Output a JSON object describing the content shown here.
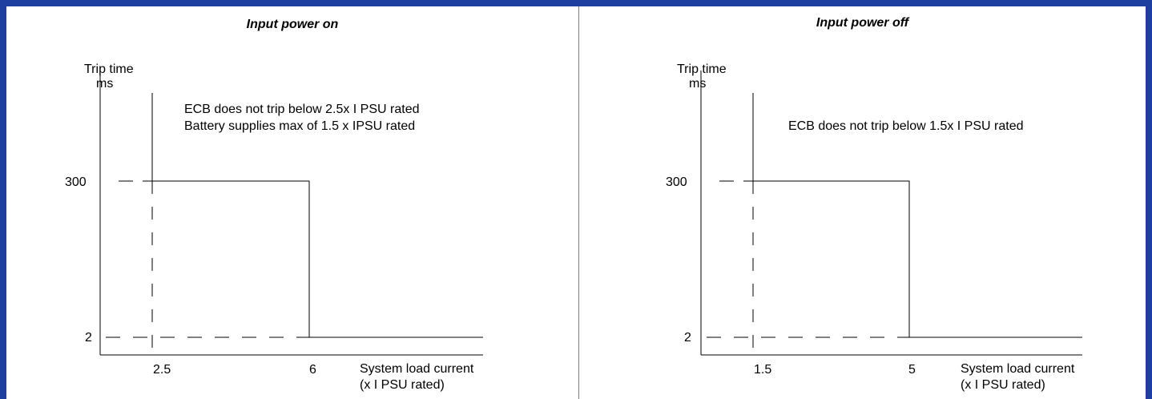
{
  "panels": [
    {
      "title": "Input power on",
      "y_axis_label_line1": "Trip time",
      "y_axis_label_line2": "ms",
      "note_line1": "ECB does not trip below 2.5x I PSU rated",
      "note_line2": "Battery supplies max of 1.5 x IPSU rated",
      "y_tick_high": "300",
      "y_tick_low": "2",
      "x_tick_first": "2.5",
      "x_tick_second": "6",
      "x_axis_label_line1": "System load current",
      "x_axis_label_line2": "(x I PSU rated)"
    },
    {
      "title": "Input power off",
      "y_axis_label_line1": "Trip time",
      "y_axis_label_line2": "ms",
      "note_line1": "ECB does not trip below 1.5x I PSU rated",
      "note_line2": "",
      "y_tick_high": "300",
      "y_tick_low": "2",
      "x_tick_first": "1.5",
      "x_tick_second": "5",
      "x_axis_label_line1": "System load current",
      "x_axis_label_line2": "(x I PSU rated)"
    }
  ],
  "colors": {
    "frame": "#1f3fa0",
    "line": "#000000",
    "divider": "#7f7f7f"
  }
}
